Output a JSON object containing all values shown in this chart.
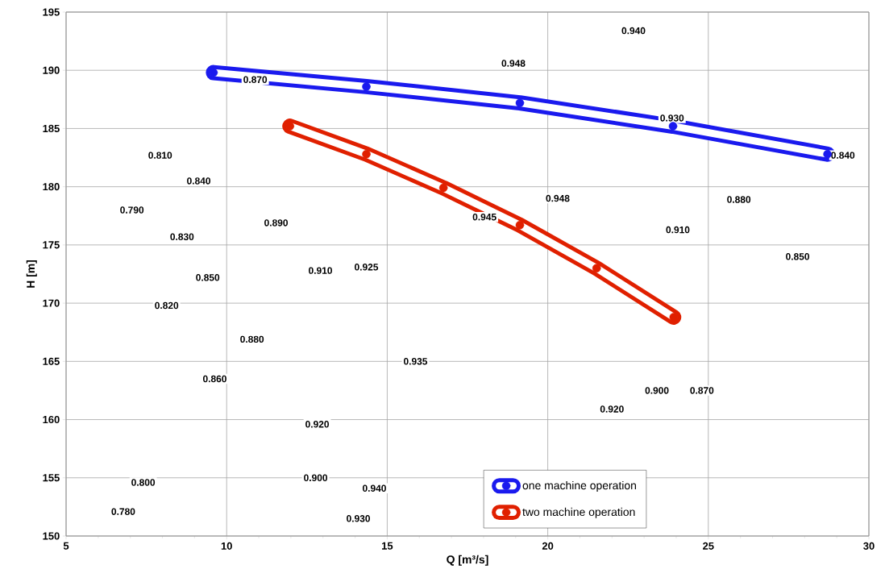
{
  "chart_data": {
    "type": "line",
    "xlabel": "Q [m³/s]",
    "ylabel": "H [m]",
    "xlim": [
      5,
      30
    ],
    "xticks": [
      5,
      10,
      15,
      20,
      25,
      30
    ],
    "ylim": [
      150,
      195
    ],
    "yticks": [
      150,
      155,
      160,
      165,
      170,
      175,
      180,
      185,
      190,
      195
    ],
    "grid": true,
    "legend": "bottom right",
    "marker": "circle",
    "line_style": "solid",
    "series": [
      {
        "name": "one machine operation",
        "color": "#1a1aee",
        "x": [
          9.59,
          14.35,
          19.13,
          23.9,
          28.71
        ],
        "values": [
          189.8,
          188.6,
          187.2,
          185.2,
          182.8
        ]
      },
      {
        "name": "two machine operation",
        "color": "#e02000",
        "x": [
          11.97,
          14.35,
          16.75,
          19.13,
          21.52,
          23.92
        ],
        "values": [
          185.2,
          182.8,
          179.9,
          176.7,
          173.0,
          168.8
        ]
      }
    ],
    "annotations": [
      {
        "text": "0.940",
        "x": 22.67,
        "y": 193.4
      },
      {
        "text": "0.948",
        "x": 18.93,
        "y": 190.6
      },
      {
        "text": "0.870",
        "x": 10.89,
        "y": 189.2
      },
      {
        "text": "0.930",
        "x": 23.87,
        "y": 185.9
      },
      {
        "text": "0.840",
        "x": 29.19,
        "y": 182.7
      },
      {
        "text": "0.810",
        "x": 7.93,
        "y": 182.7
      },
      {
        "text": "0.840",
        "x": 9.13,
        "y": 180.5
      },
      {
        "text": "0.948",
        "x": 20.31,
        "y": 179.0
      },
      {
        "text": "0.790",
        "x": 7.05,
        "y": 178.0
      },
      {
        "text": "0.880",
        "x": 25.95,
        "y": 178.9
      },
      {
        "text": "0.945",
        "x": 18.03,
        "y": 177.4
      },
      {
        "text": "0.890",
        "x": 11.54,
        "y": 176.9
      },
      {
        "text": "0.830",
        "x": 8.61,
        "y": 175.7
      },
      {
        "text": "0.910",
        "x": 24.05,
        "y": 176.3
      },
      {
        "text": "0.925",
        "x": 14.35,
        "y": 173.1
      },
      {
        "text": "0.910",
        "x": 12.92,
        "y": 172.8
      },
      {
        "text": "0.850",
        "x": 27.78,
        "y": 174.0
      },
      {
        "text": "0.850",
        "x": 9.41,
        "y": 172.2
      },
      {
        "text": "0.820",
        "x": 8.13,
        "y": 169.8
      },
      {
        "text": "0.880",
        "x": 10.79,
        "y": 166.9
      },
      {
        "text": "0.935",
        "x": 15.88,
        "y": 165.0
      },
      {
        "text": "0.860",
        "x": 9.63,
        "y": 163.5
      },
      {
        "text": "0.900",
        "x": 23.4,
        "y": 162.5
      },
      {
        "text": "0.870",
        "x": 24.8,
        "y": 162.5
      },
      {
        "text": "0.920",
        "x": 22.0,
        "y": 160.9
      },
      {
        "text": "0.920",
        "x": 12.82,
        "y": 159.6
      },
      {
        "text": "0.900",
        "x": 12.77,
        "y": 155.0
      },
      {
        "text": "0.940",
        "x": 14.6,
        "y": 154.1
      },
      {
        "text": "0.800",
        "x": 7.4,
        "y": 154.6
      },
      {
        "text": "0.780",
        "x": 6.78,
        "y": 152.1
      },
      {
        "text": "0.930",
        "x": 14.1,
        "y": 151.5
      }
    ]
  }
}
